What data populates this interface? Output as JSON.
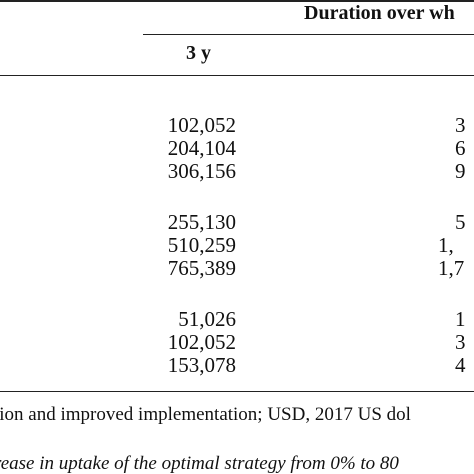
{
  "table": {
    "spanning_header": "Duration over wh",
    "column_header_1": "3 y",
    "groups": [
      {
        "rows": [
          {
            "c1": "102,052",
            "c2": "3"
          },
          {
            "c1": "204,104",
            "c2": "6"
          },
          {
            "c1": "306,156",
            "c2": "9"
          }
        ]
      },
      {
        "rows": [
          {
            "c1": "255,130",
            "c2": "5"
          },
          {
            "c1": "510,259",
            "c2": "1,"
          },
          {
            "c1": "765,389",
            "c2": "1,7"
          }
        ]
      },
      {
        "rows": [
          {
            "c1": "51,026",
            "c2": "1"
          },
          {
            "c1": "102,052",
            "c2": "3"
          },
          {
            "c1": "153,078",
            "c2": "4"
          }
        ]
      }
    ]
  },
  "footnotes": {
    "line1": "tion and improved implementation; USD, 2017 US dol",
    "line2": "rease in uptake of the optimal strategy from 0% to 80"
  }
}
